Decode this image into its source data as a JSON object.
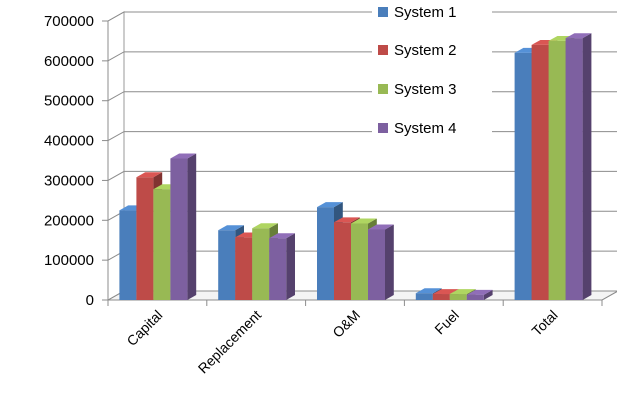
{
  "chart_data": {
    "type": "bar",
    "title": "",
    "xlabel": "",
    "ylabel": "",
    "ylim": [
      0,
      700000
    ],
    "yticks": [
      0,
      100000,
      200000,
      300000,
      400000,
      500000,
      600000,
      700000
    ],
    "grid": true,
    "legend_position": "top-right",
    "categories": [
      "Capital",
      "Replacement",
      "O&M",
      "Fuel",
      "Total"
    ],
    "series": [
      {
        "name": "System 1",
        "color": "#4a7ebb",
        "values": [
          225000,
          175000,
          233000,
          17000,
          620000
        ]
      },
      {
        "name": "System 2",
        "color": "#be4b48",
        "values": [
          308000,
          157000,
          195000,
          15000,
          640000
        ]
      },
      {
        "name": "System 3",
        "color": "#98b954",
        "values": [
          278000,
          180000,
          192000,
          15000,
          650000
        ]
      },
      {
        "name": "System 4",
        "color": "#7d60a0",
        "values": [
          355000,
          155000,
          177000,
          13000,
          657000
        ]
      }
    ]
  }
}
